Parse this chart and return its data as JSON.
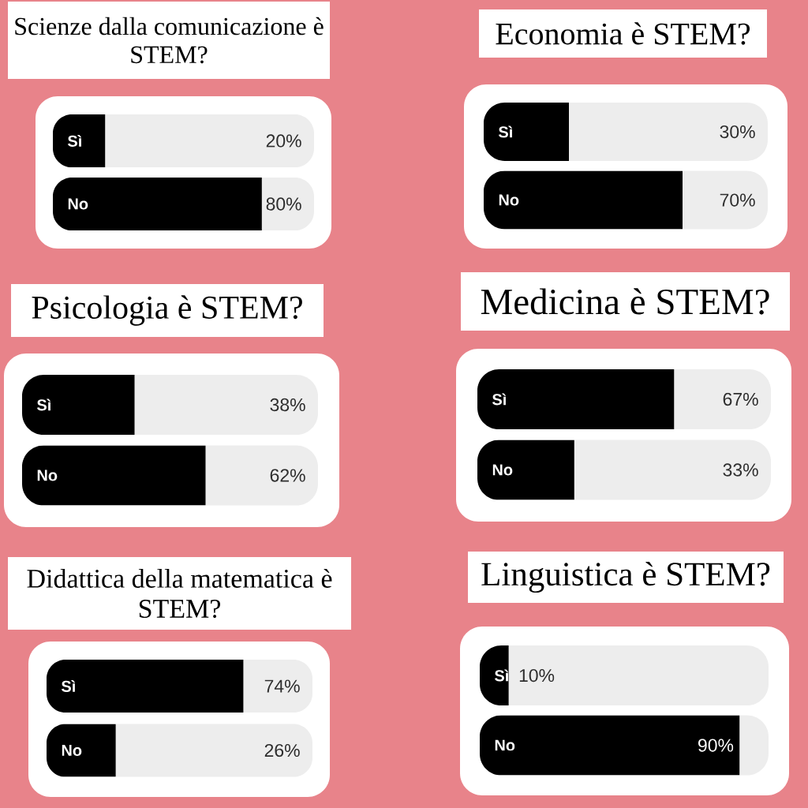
{
  "chart_data": [
    {
      "type": "bar",
      "orientation": "horizontal",
      "title": "Scienze dalla comunicazione è STEM?",
      "categories": [
        "Sì",
        "No"
      ],
      "values": [
        20,
        80
      ],
      "value_labels": [
        "20%",
        "80%"
      ],
      "color": "#000000",
      "xlim": [
        0,
        100
      ]
    },
    {
      "type": "bar",
      "orientation": "horizontal",
      "title": "Economia è STEM?",
      "categories": [
        "Sì",
        "No"
      ],
      "values": [
        30,
        70
      ],
      "value_labels": [
        "30%",
        "70%"
      ],
      "color": "#000000",
      "xlim": [
        0,
        100
      ]
    },
    {
      "type": "bar",
      "orientation": "horizontal",
      "title": "Psicologia è STEM?",
      "categories": [
        "Sì",
        "No"
      ],
      "values": [
        38,
        62
      ],
      "value_labels": [
        "38%",
        "62%"
      ],
      "color": "#000000",
      "xlim": [
        0,
        100
      ]
    },
    {
      "type": "bar",
      "orientation": "horizontal",
      "title": "Medicina è STEM?",
      "categories": [
        "Sì",
        "No"
      ],
      "values": [
        67,
        33
      ],
      "value_labels": [
        "67%",
        "33%"
      ],
      "color": "#000000",
      "xlim": [
        0,
        100
      ]
    },
    {
      "type": "bar",
      "orientation": "horizontal",
      "title": "Didattica della matematica è STEM?",
      "categories": [
        "Sì",
        "No"
      ],
      "values": [
        74,
        26
      ],
      "value_labels": [
        "74%",
        "26%"
      ],
      "color": "#000000",
      "xlim": [
        0,
        100
      ]
    },
    {
      "type": "bar",
      "orientation": "horizontal",
      "title": "Linguistica è STEM?",
      "categories": [
        "Sì",
        "No"
      ],
      "values": [
        10,
        90
      ],
      "value_labels": [
        "10%",
        "90%"
      ],
      "color": "#000000",
      "xlim": [
        0,
        100
      ]
    }
  ]
}
